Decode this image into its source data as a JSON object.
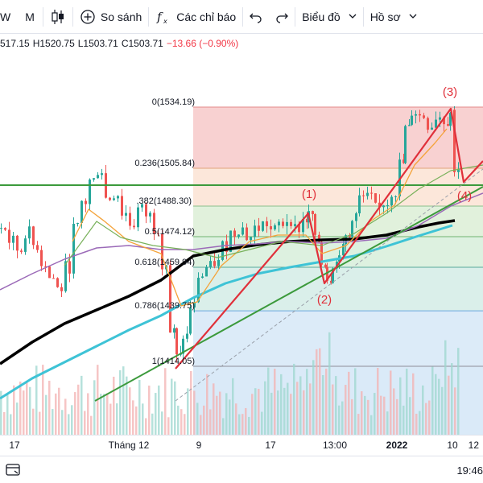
{
  "toolbar": {
    "interval_w": "W",
    "interval_m": "M",
    "compare_label": "So sánh",
    "indicators_label": "Các chỉ báo",
    "chart_type_label": "Biểu đồ",
    "profile_label": "Hồ sơ"
  },
  "ohlc": {
    "open": "517.15",
    "high": "H1520.75",
    "low": "L1503.71",
    "close": "C1503.71",
    "change": "−13.66 (−0.90%)"
  },
  "time_axis": {
    "labels": [
      "17",
      "Tháng 12",
      "9",
      "17",
      "13:00",
      "2022",
      "10",
      "12"
    ]
  },
  "clock": "19:46",
  "chart_data": {
    "type": "candlestick",
    "fib_levels": [
      {
        "ratio": "0",
        "value": "1534.19",
        "label": "0(1534.19)",
        "color": "#f7c9c9"
      },
      {
        "ratio": "0.236",
        "value": "1505.84",
        "label": "0.236(1505.84)",
        "color": "#fbe3d4"
      },
      {
        "ratio": "0.382",
        "value": "1488.30",
        "label": ".382(1488.30)",
        "color": "#dcefd6"
      },
      {
        "ratio": "0.5",
        "value": "1474.12",
        "label": "0.5(1474.12)",
        "color": "#d7eedb"
      },
      {
        "ratio": "0.618",
        "value": "1459.94",
        "label": "0.618(1459.94)",
        "color": "#d4ece6"
      },
      {
        "ratio": "0.786",
        "value": "1439.75",
        "label": "0.786(1439.75)",
        "color": "#d6e8f7"
      },
      {
        "ratio": "1",
        "value": "1414.05",
        "label": "1(1414.05)",
        "color": "#e3e3e6"
      }
    ],
    "wave_labels": [
      "(1)",
      "(2)",
      "(3)",
      "(4)"
    ],
    "colors": {
      "up": "#26a69a",
      "down": "#ef5350",
      "wave": "#e0303a",
      "trend": "#3c9a3c",
      "ma_black": "#000000",
      "ma_cyan": "#3ec3d6",
      "ma_purple": "#9b6ab8",
      "ma_orange": "#f4a33a",
      "ma_green": "#78b15a"
    }
  }
}
